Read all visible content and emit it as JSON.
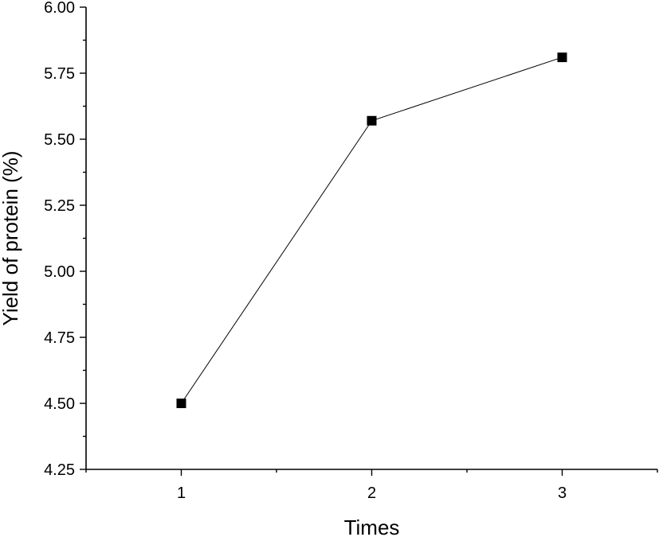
{
  "chart_data": {
    "type": "line",
    "title": "",
    "xlabel": "Times",
    "ylabel": "Yield of protein (%)",
    "xlim": [
      0.5,
      3.5
    ],
    "ylim": [
      4.25,
      6.0
    ],
    "x_ticks": [
      1,
      2,
      3
    ],
    "x_tick_labels": [
      "1",
      "2",
      "3"
    ],
    "y_ticks": [
      4.25,
      4.5,
      4.75,
      5.0,
      5.25,
      5.5,
      5.75,
      6.0
    ],
    "y_tick_labels": [
      "4.25",
      "4.50",
      "4.75",
      "5.00",
      "5.25",
      "5.50",
      "5.75",
      "6.00"
    ],
    "grid": false,
    "marker": "square",
    "series_color": "#000000",
    "series": [
      {
        "x": [
          1,
          2,
          3
        ],
        "values": [
          4.5,
          5.57,
          5.81
        ]
      }
    ]
  }
}
